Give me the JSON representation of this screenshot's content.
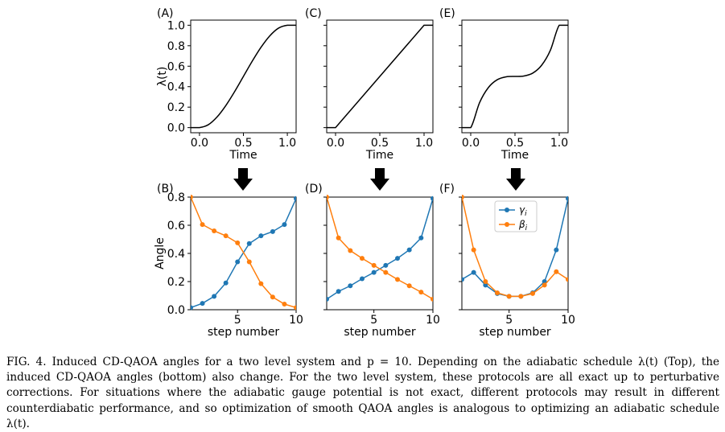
{
  "caption": "FIG. 4.  Induced CD-QAOA angles for a two level system and p = 10.  Depending on the adiabatic schedule λ(t) (Top), the induced CD-QAOA angles (bottom) also change. For the two level system, these protocols are all exact up to perturbative corrections. For situations where the adiabatic gauge potential is not exact, different protocols may result in different counterdiabatic performance, and so optimization of smooth QAOA angles is analogous to optimizing an adiabatic schedule λ(t).",
  "colors": {
    "gamma": "#1f77b4",
    "beta": "#ff7f0e",
    "schedule": "#000000",
    "arrow": "#000000"
  },
  "chart_data": [
    {
      "type": "line",
      "panel_label": "(A)",
      "xlabel": "Time",
      "ylabel": "λ(t)",
      "xlim": [
        -0.1,
        1.1
      ],
      "ylim": [
        -0.05,
        1.05
      ],
      "xticks": [
        "0.0",
        "0.5",
        "1.0"
      ],
      "yticks": [
        "0.0",
        "0.2",
        "0.4",
        "0.6",
        "0.8",
        "1.0"
      ],
      "series": [
        {
          "values_x": [
            -0.1,
            0.0,
            0.1,
            0.2,
            0.3,
            0.4,
            0.5,
            0.6,
            0.7,
            0.8,
            0.9,
            1.0,
            1.1
          ],
          "values_y": [
            0.0,
            0.0,
            0.028,
            0.104,
            0.216,
            0.352,
            0.5,
            0.648,
            0.784,
            0.896,
            0.972,
            1.0,
            1.0
          ]
        }
      ]
    },
    {
      "type": "line",
      "panel_label": "(B)",
      "xlabel": "step number",
      "ylabel": "Angle",
      "xlim": [
        1,
        10
      ],
      "ylim": [
        0.0,
        0.8
      ],
      "xticks": [
        "5",
        "10"
      ],
      "yticks": [
        "0.0",
        "0.2",
        "0.4",
        "0.6",
        "0.8"
      ],
      "x": [
        1,
        2,
        3,
        4,
        5,
        6,
        7,
        8,
        9,
        10
      ],
      "series": [
        {
          "key": "gamma",
          "values": [
            0.015,
            0.045,
            0.095,
            0.19,
            0.34,
            0.47,
            0.525,
            0.555,
            0.605,
            0.79
          ]
        },
        {
          "key": "beta",
          "values": [
            0.8,
            0.605,
            0.56,
            0.525,
            0.475,
            0.34,
            0.185,
            0.09,
            0.04,
            0.015
          ]
        }
      ]
    },
    {
      "type": "line",
      "panel_label": "(C)",
      "xlabel": "Time",
      "ylabel": "",
      "xlim": [
        -0.1,
        1.1
      ],
      "ylim": [
        -0.05,
        1.05
      ],
      "xticks": [
        "0.0",
        "0.5",
        "1.0"
      ],
      "yticks": [],
      "series": [
        {
          "values_x": [
            -0.1,
            0.0,
            1.0,
            1.1
          ],
          "values_y": [
            0.0,
            0.0,
            1.0,
            1.0
          ]
        }
      ]
    },
    {
      "type": "line",
      "panel_label": "(D)",
      "xlabel": "step number",
      "ylabel": "",
      "xlim": [
        1,
        10
      ],
      "ylim": [
        0.0,
        0.8
      ],
      "xticks": [
        "5",
        "10"
      ],
      "yticks": [],
      "x": [
        1,
        2,
        3,
        4,
        5,
        6,
        7,
        8,
        9,
        10
      ],
      "series": [
        {
          "key": "gamma",
          "values": [
            0.075,
            0.13,
            0.17,
            0.22,
            0.265,
            0.315,
            0.365,
            0.425,
            0.51,
            0.79
          ]
        },
        {
          "key": "beta",
          "values": [
            0.8,
            0.51,
            0.42,
            0.365,
            0.315,
            0.265,
            0.215,
            0.17,
            0.125,
            0.075
          ]
        }
      ]
    },
    {
      "type": "line",
      "panel_label": "(E)",
      "xlabel": "Time",
      "ylabel": "",
      "xlim": [
        -0.1,
        1.1
      ],
      "ylim": [
        -0.05,
        1.05
      ],
      "xticks": [
        "0.0",
        "0.5",
        "1.0"
      ],
      "yticks": [],
      "series": [
        {
          "values_x": [
            -0.1,
            0.0,
            0.1,
            0.2,
            0.3,
            0.4,
            0.5,
            0.6,
            0.7,
            0.8,
            0.9,
            1.0,
            1.1
          ],
          "values_y": [
            0.0,
            0.0,
            0.244,
            0.392,
            0.468,
            0.496,
            0.5,
            0.504,
            0.532,
            0.608,
            0.756,
            1.0,
            1.0
          ]
        }
      ]
    },
    {
      "type": "line",
      "panel_label": "(F)",
      "xlabel": "step number",
      "ylabel": "",
      "xlim": [
        1,
        10
      ],
      "ylim": [
        0.0,
        0.8
      ],
      "xticks": [
        "5",
        "10"
      ],
      "yticks": [],
      "legend": {
        "placement": "top-center",
        "entries": [
          {
            "key": "gamma",
            "label": "γi"
          },
          {
            "key": "beta",
            "label": "βi"
          }
        ]
      },
      "x": [
        1,
        2,
        3,
        4,
        5,
        6,
        7,
        8,
        9,
        10
      ],
      "series": [
        {
          "key": "gamma",
          "name": "γi",
          "values": [
            0.215,
            0.265,
            0.175,
            0.115,
            0.095,
            0.095,
            0.12,
            0.2,
            0.425,
            0.79
          ]
        },
        {
          "key": "beta",
          "name": "βi",
          "values": [
            0.8,
            0.425,
            0.2,
            0.12,
            0.095,
            0.095,
            0.115,
            0.175,
            0.27,
            0.215
          ]
        }
      ]
    }
  ]
}
